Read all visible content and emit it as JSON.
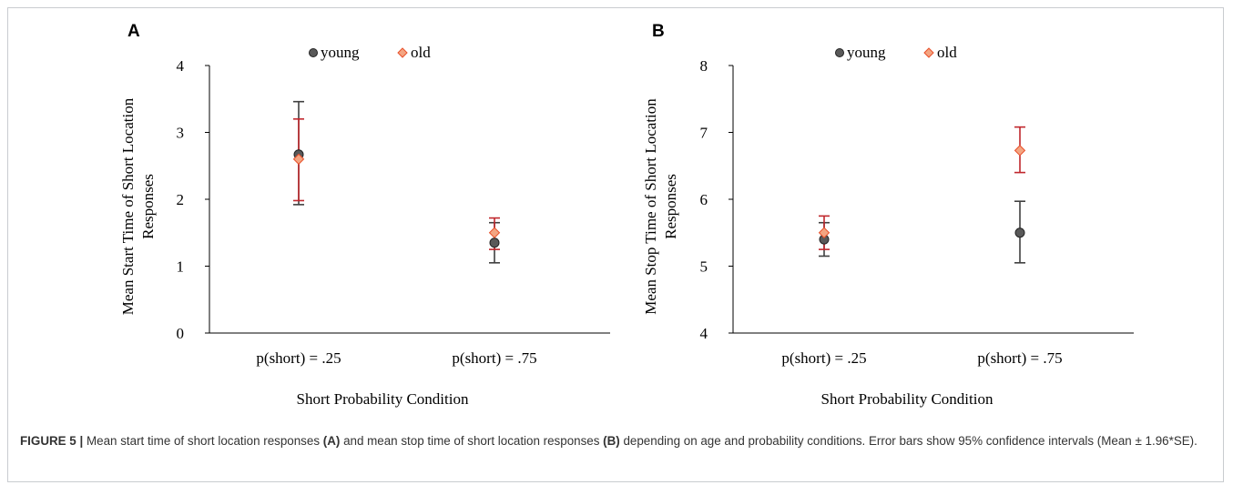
{
  "figure": {
    "label": "FIGURE 5",
    "separator": "|",
    "caption_parts": [
      {
        "text": "Mean start time of short location responses ",
        "bold": false
      },
      {
        "text": "(A)",
        "bold": true
      },
      {
        "text": " and mean stop time of short location responses ",
        "bold": false
      },
      {
        "text": "(B)",
        "bold": true
      },
      {
        "text": " depending on age and probability conditions. Error bars show 95% confidence intervals (Mean ± 1.96*SE).",
        "bold": false
      }
    ]
  },
  "colors": {
    "young_marker": "#595959",
    "young_bar": "#404040",
    "old_marker": "#f4a582",
    "old_marker_stroke": "#e8502a",
    "old_bar": "#c0272d",
    "axis": "#000000"
  },
  "chart_data": [
    {
      "panel": "A",
      "type": "scatter",
      "title": "",
      "xlabel": "Short Probability  Condition",
      "ylabel_lines": [
        "Mean Start Time of Short Location",
        "Responses"
      ],
      "categories": [
        "p(short) = .25",
        "p(short) = .75"
      ],
      "ylim": [
        0,
        4
      ],
      "yticks": [
        0,
        1,
        2,
        3,
        4
      ],
      "legend_position": "top-center",
      "series": [
        {
          "name": "young",
          "marker": "circle",
          "values": [
            2.67,
            1.35
          ],
          "lower": [
            1.92,
            1.05
          ],
          "upper": [
            3.46,
            1.65
          ]
        },
        {
          "name": "old",
          "marker": "diamond",
          "values": [
            2.6,
            1.5
          ],
          "lower": [
            1.98,
            1.25
          ],
          "upper": [
            3.2,
            1.72
          ]
        }
      ]
    },
    {
      "panel": "B",
      "type": "scatter",
      "title": "",
      "xlabel": "Short Probability  Condition",
      "ylabel_lines": [
        "Mean Stop Time of Short Location",
        "Responses"
      ],
      "categories": [
        "p(short) = .25",
        "p(short) = .75"
      ],
      "ylim": [
        4,
        8
      ],
      "yticks": [
        4,
        5,
        6,
        7,
        8
      ],
      "legend_position": "top-center",
      "series": [
        {
          "name": "young",
          "marker": "circle",
          "values": [
            5.4,
            5.5
          ],
          "lower": [
            5.15,
            5.05
          ],
          "upper": [
            5.65,
            5.97
          ]
        },
        {
          "name": "old",
          "marker": "diamond",
          "values": [
            5.5,
            6.73
          ],
          "lower": [
            5.25,
            6.4
          ],
          "upper": [
            5.75,
            7.08
          ]
        }
      ]
    }
  ]
}
